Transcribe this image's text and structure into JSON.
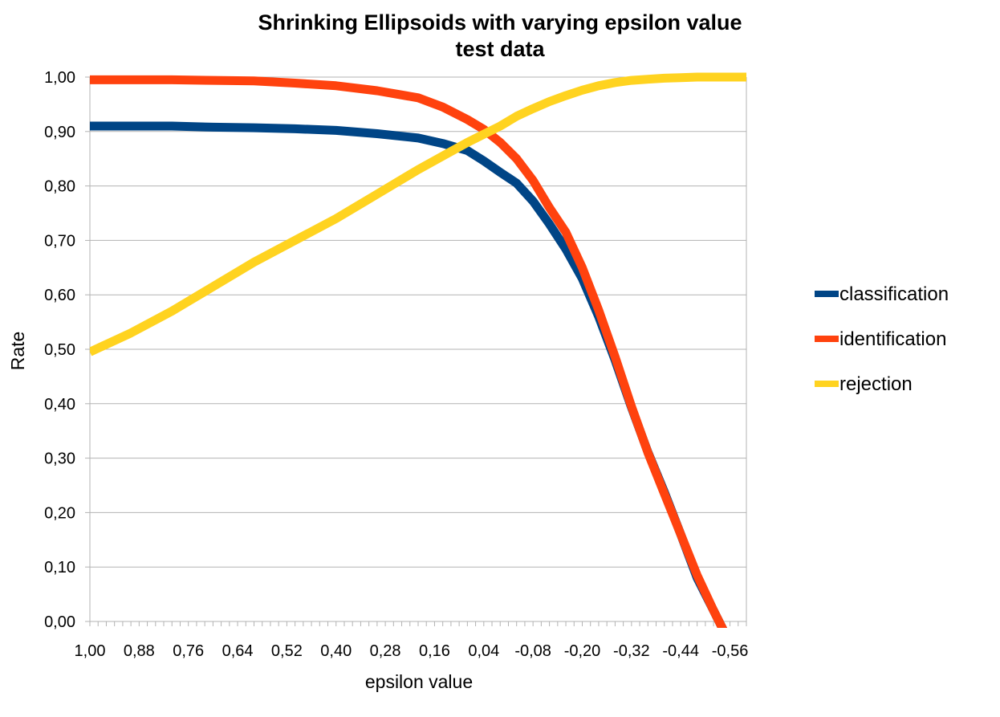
{
  "chart_data": {
    "type": "line",
    "title": "Shrinking Ellipsoids with varying epsilon value",
    "subtitle": "test data",
    "xlabel": "epsilon value",
    "ylabel": "Rate",
    "ylim": [
      0,
      1
    ],
    "y_ticks": [
      "0,00",
      "0,10",
      "0,20",
      "0,30",
      "0,40",
      "0,50",
      "0,60",
      "0,70",
      "0,80",
      "0,90",
      "1,00"
    ],
    "x_range": [
      1.0,
      -0.6
    ],
    "x_ticks": [
      "1,00",
      "0,88",
      "0,76",
      "0,64",
      "0,52",
      "0,40",
      "0,28",
      "0,16",
      "0,04",
      "-0,08",
      "-0,20",
      "-0,32",
      "-0,44",
      "-0,56"
    ],
    "grid": true,
    "legend_position": "right",
    "series": [
      {
        "name": "classification",
        "color": "#004586",
        "x": [
          1.0,
          0.9,
          0.8,
          0.7,
          0.6,
          0.5,
          0.4,
          0.3,
          0.2,
          0.14,
          0.08,
          0.04,
          0.0,
          -0.04,
          -0.08,
          -0.12,
          -0.16,
          -0.2,
          -0.24,
          -0.28,
          -0.32,
          -0.36,
          -0.4,
          -0.44,
          -0.48,
          -0.52,
          -0.56,
          -0.6
        ],
        "values": [
          0.91,
          0.91,
          0.91,
          0.908,
          0.907,
          0.905,
          0.902,
          0.896,
          0.888,
          0.878,
          0.865,
          0.846,
          0.825,
          0.805,
          0.772,
          0.73,
          0.684,
          0.63,
          0.56,
          0.48,
          0.393,
          0.311,
          0.238,
          0.16,
          0.08,
          0.02,
          -0.04,
          -0.1
        ]
      },
      {
        "name": "identification",
        "color": "#ff420e",
        "x": [
          1.0,
          0.9,
          0.8,
          0.7,
          0.6,
          0.5,
          0.4,
          0.3,
          0.2,
          0.14,
          0.08,
          0.04,
          0.0,
          -0.04,
          -0.08,
          -0.12,
          -0.16,
          -0.2,
          -0.24,
          -0.28,
          -0.32,
          -0.36,
          -0.4,
          -0.44,
          -0.48,
          -0.52,
          -0.56,
          -0.6
        ],
        "values": [
          0.995,
          0.995,
          0.995,
          0.994,
          0.993,
          0.989,
          0.984,
          0.975,
          0.962,
          0.945,
          0.922,
          0.904,
          0.88,
          0.85,
          0.81,
          0.76,
          0.715,
          0.65,
          0.572,
          0.486,
          0.395,
          0.31,
          0.235,
          0.16,
          0.085,
          0.02,
          -0.04,
          -0.1
        ]
      },
      {
        "name": "rejection",
        "color": "#ffd320",
        "x": [
          1.0,
          0.9,
          0.8,
          0.7,
          0.6,
          0.5,
          0.4,
          0.3,
          0.2,
          0.14,
          0.08,
          0.04,
          0.0,
          -0.04,
          -0.08,
          -0.12,
          -0.16,
          -0.2,
          -0.24,
          -0.28,
          -0.32,
          -0.36,
          -0.4,
          -0.44,
          -0.48,
          -0.52,
          -0.56,
          -0.6
        ],
        "values": [
          0.495,
          0.53,
          0.57,
          0.615,
          0.66,
          0.7,
          0.74,
          0.785,
          0.83,
          0.855,
          0.88,
          0.895,
          0.91,
          0.928,
          0.942,
          0.955,
          0.966,
          0.976,
          0.984,
          0.99,
          0.994,
          0.996,
          0.998,
          0.999,
          1.0,
          1.0,
          1.0,
          1.0
        ]
      }
    ]
  }
}
